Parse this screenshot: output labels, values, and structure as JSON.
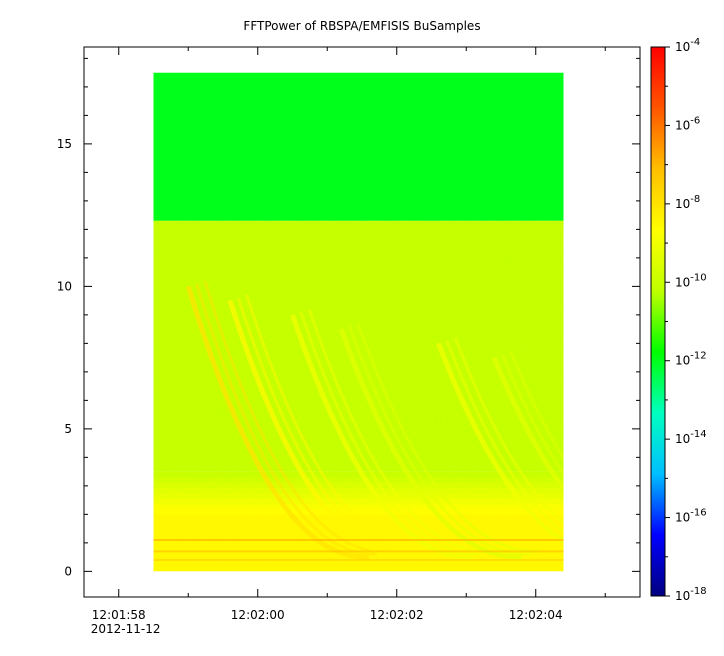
{
  "chart_data": {
    "type": "heatmap",
    "title": "FFTPower of RBSPA/EMFISIS  BuSamples",
    "xlabel": "",
    "ylabel": "",
    "x_axis": {
      "type": "time",
      "date": "2012-11-12",
      "range": [
        "12:01:57.5",
        "12:02:05.5"
      ],
      "major_ticks": [
        "12:01:58",
        "12:02:00",
        "12:02:02",
        "12:02:04"
      ],
      "minor_ticks": [
        "12:01:59",
        "12:02:01",
        "12:02:03",
        "12:02:05"
      ],
      "date_label": "2012-11-12"
    },
    "y_axis": {
      "range": [
        -0.9,
        18.4
      ],
      "ticks": [
        0,
        5,
        10,
        15
      ],
      "tick_labels": [
        "0",
        "5",
        "10",
        "15"
      ]
    },
    "data_extent": {
      "time_start": "12:01:58.5",
      "time_end": "12:02:04.4",
      "y_min": 0,
      "y_max": 17.5,
      "band_boundary_y": 12.3
    },
    "colorbar": {
      "scale": "log",
      "range": [
        1e-18,
        0.0001
      ],
      "ticks": [
        {
          "base": "10",
          "exp": "-18"
        },
        {
          "base": "10",
          "exp": "-16"
        },
        {
          "base": "10",
          "exp": "-14"
        },
        {
          "base": "10",
          "exp": "-12"
        },
        {
          "base": "10",
          "exp": "-10"
        },
        {
          "base": "10",
          "exp": "-8"
        },
        {
          "base": "10",
          "exp": "-6"
        },
        {
          "base": "10",
          "exp": "-4"
        }
      ],
      "colormap": [
        "#00007f",
        "#0000ff",
        "#00bfff",
        "#00ffbf",
        "#00ff00",
        "#bfff00",
        "#ffff00",
        "#ffbf00",
        "#ff5500",
        "#ff0000"
      ]
    },
    "regions": [
      {
        "name": "upper band",
        "y_range": [
          12.3,
          17.5
        ],
        "power_log10": -12.0
      },
      {
        "name": "middle band",
        "y_range": [
          3.5,
          12.3
        ],
        "power_log10": -10.2
      },
      {
        "name": "low band",
        "y_range": [
          0,
          2
        ],
        "power_log10": -8.5
      }
    ],
    "features": [
      {
        "name": "whistler trace",
        "time": "12:01:59.0",
        "power_log10": -8.0
      },
      {
        "name": "whistler trace",
        "time": "12:01:59.6",
        "power_log10": -8.5
      },
      {
        "name": "whistler trace",
        "time": "12:02:00.5",
        "power_log10": -9.0
      },
      {
        "name": "whistler trace",
        "time": "12:02:01.2",
        "power_log10": -9.4
      },
      {
        "name": "whistler trace",
        "time": "12:02:02.6",
        "power_log10": -9.0
      },
      {
        "name": "whistler trace",
        "time": "12:02:03.4",
        "power_log10": -9.4
      }
    ]
  }
}
